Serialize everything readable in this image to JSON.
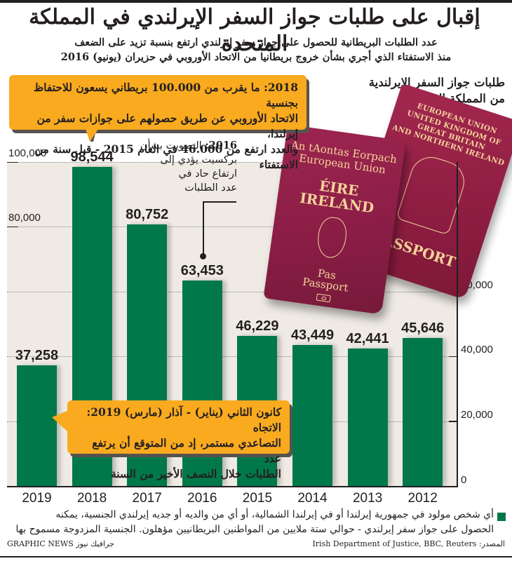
{
  "title": "إقبال على طلبات جواز السفر الإيرلندي في المملكة المتحدة",
  "subtitle": [
    "عدد الطلبات البريطانية للحصول على جواز سفر إيرلندي ارتفع بنسبة تزيد على الضعف",
    "منذ الاستفتاء الذي أجري بشأن خروج بريطانيا من الاتحاد الأوروبي في حزيران (يونيو) 2016"
  ],
  "chart_heading": [
    "طلبات جواز السفر الإيرلندية",
    "من المملكة المتحدة"
  ],
  "callouts": {
    "c2018": [
      "2018: ما يقرب من 100.000 بريطاني يسعون للاحتفاظ بجنسية",
      "الاتحاد الأوروبي عن طريق حصولهم على جوازات سفر من إيرلندا،",
      "والعدد ارتفع من 46.000 في العام 2015 - قبل سنة من الاستفتاء"
    ],
    "c2019": [
      "كانون الثاني (يناير) - آذار (مارس) 2019: الاتجاه",
      "التصاعدي مستمر، إد من المتوقع أن يرتفع عدد",
      "الطلبات خلال النصف الأخير من السنة"
    ]
  },
  "annotation_2016": {
    "year": "2016:",
    "lines": [
      "التصويت بشأن",
      "بركسيت يؤدي إلى",
      "ارتفاع حاد في",
      "عدد الطلبات"
    ]
  },
  "passports": {
    "ireland": {
      "line1": "An tAontas Eorpach",
      "line2": "European Union",
      "line3": "ÉIRE",
      "line4": "IRELAND",
      "line5": "Pas",
      "line6": "Passport"
    },
    "uk": {
      "line1": "EUROPEAN UNION",
      "line2": "UNITED KINGDOM OF",
      "line3": "GREAT BRITAIN",
      "line4": "AND NORTHERN IRELAND",
      "line5": "PASSPORT"
    }
  },
  "colors": {
    "bar": "#00784a",
    "plot_background": "#efebe4",
    "callout": "#f9aa1f",
    "passport": "#8e1d42",
    "passport_text": "#f4d39a"
  },
  "chart_data": {
    "type": "bar",
    "title": "طلبات جواز السفر الإيرلندية من المملكة المتحدة",
    "xlabel": "",
    "ylabel": "",
    "categories": [
      "2019",
      "2018",
      "2017",
      "2016",
      "2015",
      "2014",
      "2013",
      "2012"
    ],
    "values": [
      37258,
      98544,
      80752,
      63453,
      46229,
      43449,
      42441,
      45646
    ],
    "value_labels": [
      "37,258",
      "98,544",
      "80,752",
      "63,453",
      "46,229",
      "43,449",
      "42,441",
      "45,646"
    ],
    "ylim": [
      0,
      100000
    ],
    "yticks": [
      0,
      20000,
      40000,
      60000,
      80000,
      100000
    ],
    "ytick_labels": [
      "0",
      "20,000",
      "40,000",
      "60,000",
      "80,000",
      "100,000"
    ],
    "grid": true,
    "legend": [
      {
        "label": "أي شخص مولود في جمهورية إيرلندا أو في إيرلندا الشمالية، أو أي من والديه أو جديه إيرلندي الجنسية، يمكنه الحصول على جواز سفر إيرلندي",
        "color": "#00784a"
      }
    ],
    "annotations": [
      "2018: ما يقرب من 100.000 بريطاني يسعون للاحتفاظ بجنسية الاتحاد الأوروبي عن طريق حصولهم على جوازات سفر من إيرلندا، والعدد ارتفع من 46.000 في العام 2015 - قبل سنة من الاستفتاء",
      "2016: التصويت بشأن بركسيت يؤدي إلى ارتفاع حاد في عدد الطلبات",
      "كانون الثاني (يناير) - آذار (مارس) 2019: الاتجاه التصاعدي مستمر، إد من المتوقع أن يرتفع عدد الطلبات خلال النصف الأخير من السنة"
    ]
  },
  "footnote": [
    "أي شخص مولود في جمهورية إيرلندا أو في إيرلندا الشمالية، أو أي من والديه أو جديه إيرلندي الجنسية، يمكنه",
    "الحصول على جواز سفر إيرلندي - حوالي ستة ملايين من المواطنين البريطانيين مؤهلون. الجنسية المزدوجة مسموح بها"
  ],
  "source": "المصدر: Irish Department of Justice, BBC, Reuters",
  "credit": "GRAPHIC NEWS جرافيك نيوز"
}
